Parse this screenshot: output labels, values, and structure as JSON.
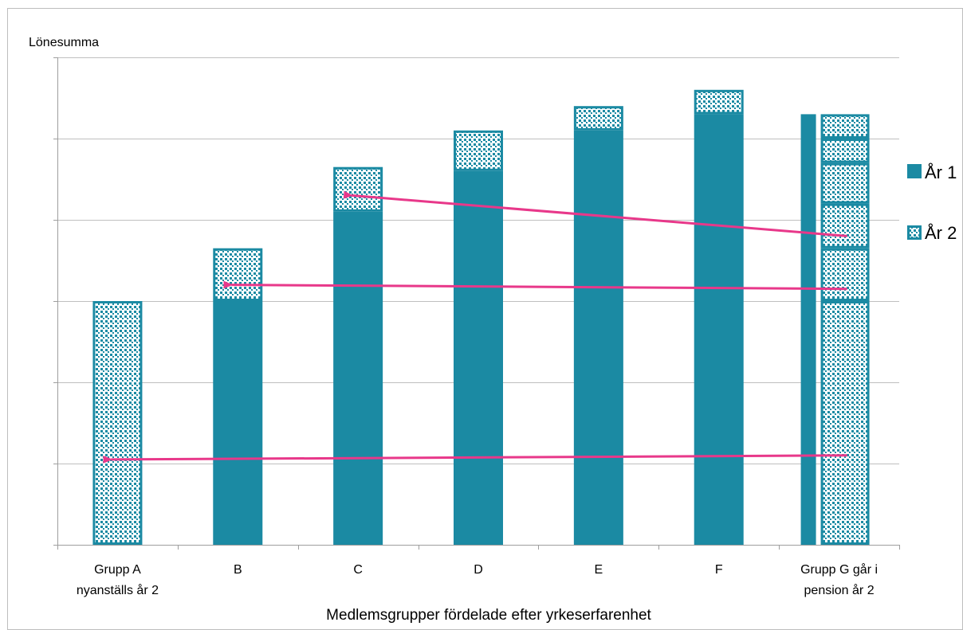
{
  "chart_data": {
    "type": "bar",
    "stacked": true,
    "ylabel": "Lönesumma",
    "xlabel": "Medlemsgrupper fördelade efter yrkeserfarenhet",
    "categories": [
      "Grupp A nyanställs år 2",
      "B",
      "C",
      "D",
      "E",
      "F",
      "Grupp G går i pension år 2"
    ],
    "category_lines": [
      [
        "Grupp A",
        "nyanställs år 2"
      ],
      [
        "B"
      ],
      [
        "C"
      ],
      [
        "D"
      ],
      [
        "E"
      ],
      [
        "F"
      ],
      [
        "Grupp G går i",
        "pension år 2"
      ]
    ],
    "ylim": [
      0,
      6
    ],
    "y_tick_count": 6,
    "y_tick_labels_shown": false,
    "grid": true,
    "legend_position": "right",
    "series": [
      {
        "name": "År 1",
        "fill": "solid",
        "color": "#1b8aa3"
      },
      {
        "name": "År 2",
        "fill": "pattern",
        "color": "#1b8aa3"
      }
    ],
    "bars": [
      {
        "category": "Grupp A nyanställs år 2",
        "ar1": 0,
        "ar2_top": 3.0
      },
      {
        "category": "B",
        "ar1": 3.0,
        "ar2_top": 3.65
      },
      {
        "category": "C",
        "ar1": 4.1,
        "ar2_top": 4.65
      },
      {
        "category": "D",
        "ar1": 4.6,
        "ar2_top": 5.1
      },
      {
        "category": "E",
        "ar1": 5.1,
        "ar2_top": 5.4
      },
      {
        "category": "F",
        "ar1": 5.3,
        "ar2_top": 5.6
      }
    ],
    "group_g": {
      "ar1": 5.3,
      "ar2_segments": [
        3.0,
        0.65,
        0.55,
        0.5,
        0.3,
        0.3
      ]
    },
    "arrows": [
      {
        "from_y": 1.1,
        "to_category": "Grupp A nyanställs år 2",
        "to_y": 1.05,
        "color": "#e8388a"
      },
      {
        "from_y": 3.15,
        "to_category": "B",
        "to_y": 3.2,
        "color": "#e8388a"
      },
      {
        "from_y": 3.8,
        "to_category": "C",
        "to_y": 4.3,
        "color": "#e8388a"
      }
    ]
  }
}
